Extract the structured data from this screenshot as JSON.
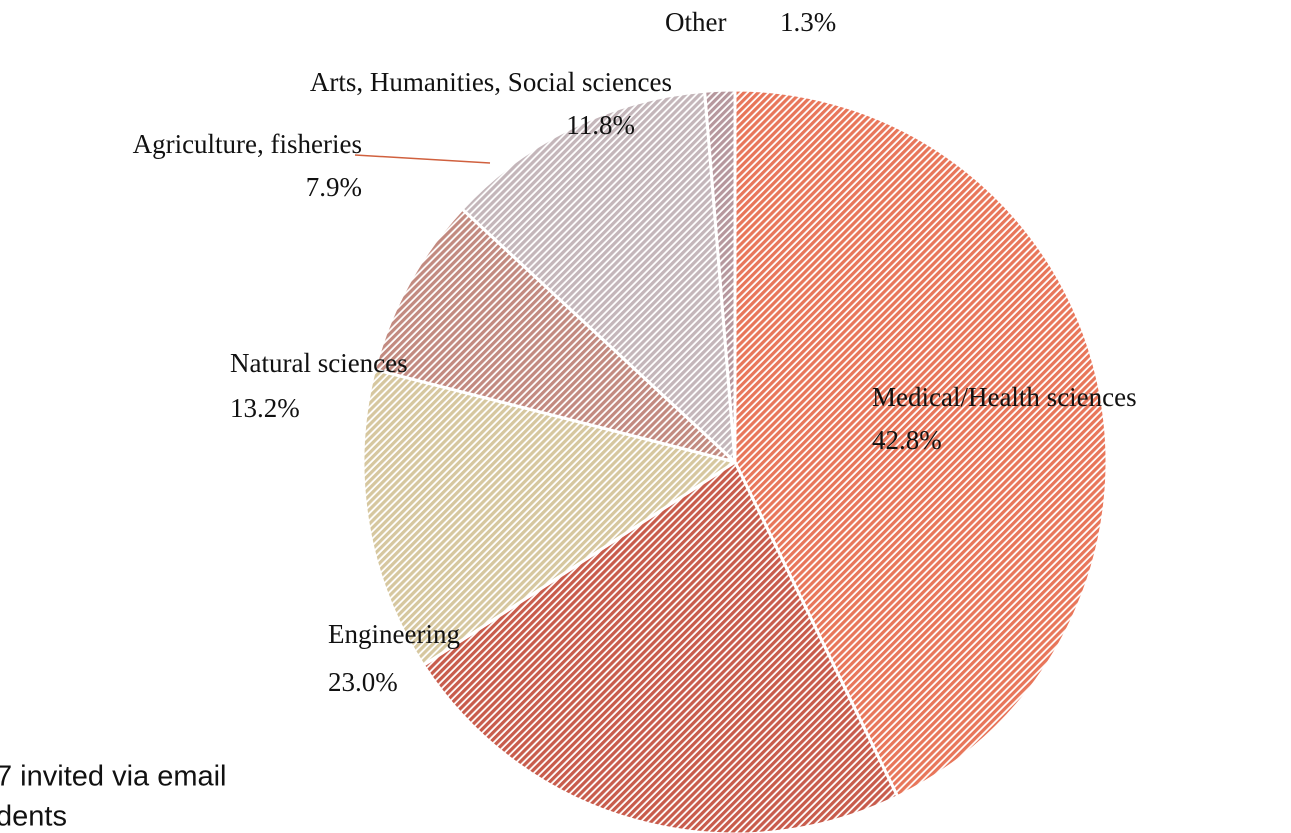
{
  "chart_data": {
    "type": "pie",
    "categories": [
      "Medical/Health sciences",
      "Engineering",
      "Natural sciences",
      "Agriculture, fisheries",
      "Arts, Humanities, Social sciences",
      "Other"
    ],
    "values": [
      42.8,
      23.0,
      13.2,
      7.9,
      11.8,
      1.3
    ],
    "value_labels": [
      "42.8%",
      "23.0%",
      "13.2%",
      "7.9%",
      "11.8%",
      "1.3%"
    ],
    "colors": [
      "#e8765a",
      "#c85c4c",
      "#d6c79f",
      "#c28a80",
      "#c4b6ba",
      "#b6979d"
    ]
  },
  "notes": [
    "7 invited via email",
    "dents"
  ]
}
